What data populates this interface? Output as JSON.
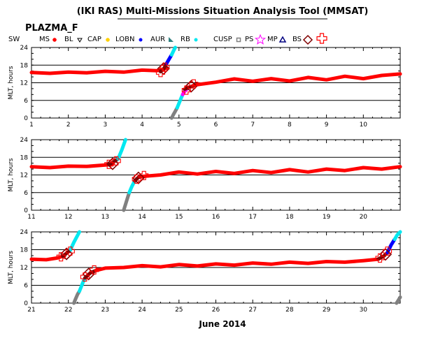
{
  "title": "(IKI RAS) Multi-Missions Situation Analysis Tool (MMSAT)",
  "satellite": "PLAZMA_F",
  "xlabel": "June 2014",
  "ylabel": "MLT, hours",
  "legend": [
    {
      "label": "SW",
      "icon": "none",
      "color": "#000000"
    },
    {
      "label": "MS",
      "icon": "star-icon",
      "color": "#ff0000"
    },
    {
      "label": "BL",
      "icon": "triangle-down-icon",
      "color": "#000000"
    },
    {
      "label": "CAP",
      "icon": "star-icon",
      "color": "#ffd000"
    },
    {
      "label": "LOBN",
      "icon": "dot-icon",
      "color": "#0000ff"
    },
    {
      "label": "AUR",
      "icon": "wedge-icon",
      "color": "#2f7f7f"
    },
    {
      "label": "RB",
      "icon": "dot-icon",
      "color": "#00e8f0"
    },
    {
      "label": "CUSP",
      "icon": "square-icon",
      "color": "#808080"
    },
    {
      "label": "PS",
      "icon": "star-outline-icon",
      "color": "#ff00ff"
    },
    {
      "label": "MP",
      "icon": "triangle-up-icon",
      "color": "#000080"
    },
    {
      "label": "BS",
      "icon": "diamond-icon",
      "color": "#800000"
    },
    {
      "label": "",
      "icon": "cross-outline-icon",
      "color": "#ff0000"
    }
  ],
  "chart_data": [
    {
      "type": "line",
      "panel": "1-11 June 2014",
      "xlim": [
        1,
        11
      ],
      "ylim": [
        0,
        24
      ],
      "xticks": [
        "1",
        "2",
        "3",
        "4",
        "5",
        "6",
        "7",
        "8",
        "9",
        "10"
      ],
      "yticks": [
        "0",
        "6",
        "12",
        "18",
        "24"
      ],
      "grid": true,
      "series": [
        {
          "region": "MS",
          "color": "#ff0000",
          "x": [
            1.0,
            1.5,
            2.0,
            2.5,
            3.0,
            3.5,
            4.0,
            4.4,
            4.55,
            4.65
          ],
          "y": [
            15.5,
            15.2,
            15.6,
            15.4,
            15.9,
            15.6,
            16.3,
            16.1,
            16.4,
            17.0
          ]
        },
        {
          "region": "BS",
          "color": "#800000",
          "x": [
            4.5,
            4.6,
            4.65
          ],
          "y": [
            15.8,
            17.0,
            18.3
          ]
        },
        {
          "region": "RB",
          "color": "#0000ff",
          "x": [
            4.65,
            4.72,
            4.8
          ],
          "y": [
            18.3,
            19.8,
            21.5
          ]
        },
        {
          "region": "RB",
          "color": "#00e8f0",
          "x": [
            4.8,
            4.85,
            4.9
          ],
          "y": [
            21.5,
            22.8,
            24.0
          ]
        },
        {
          "region": "CUSP",
          "color": "#808080",
          "x": [
            4.8,
            4.85,
            4.9,
            4.95
          ],
          "y": [
            0.0,
            1.2,
            2.3,
            3.5
          ]
        },
        {
          "region": "RB",
          "color": "#00e8f0",
          "x": [
            4.95,
            5.0,
            5.05,
            5.1
          ],
          "y": [
            3.5,
            5.0,
            6.5,
            8.0
          ]
        },
        {
          "region": "PS",
          "color": "#ff00ff",
          "x": [
            5.1,
            5.15,
            5.2
          ],
          "y": [
            8.0,
            9.0,
            9.6
          ]
        },
        {
          "region": "BS",
          "color": "#800000",
          "x": [
            5.15,
            5.3,
            5.45
          ],
          "y": [
            9.8,
            10.6,
            11.2
          ]
        },
        {
          "region": "MS",
          "color": "#ff0000",
          "x": [
            5.4,
            6.0,
            6.5,
            7.0,
            7.5,
            8.0,
            8.5,
            9.0,
            9.5,
            10.0,
            10.5,
            11.0
          ],
          "y": [
            11.2,
            12.2,
            13.3,
            12.5,
            13.4,
            12.6,
            13.8,
            13.0,
            14.2,
            13.4,
            14.5,
            15.0
          ]
        }
      ],
      "crossings": [
        {
          "marker": "BS",
          "x": 4.58,
          "y": 16.8
        },
        {
          "marker": "BS",
          "x": 5.33,
          "y": 10.8
        },
        {
          "marker": "MP",
          "x": 4.5,
          "y": 15.5
        },
        {
          "marker": "MP",
          "x": 4.62,
          "y": 17.3
        },
        {
          "marker": "MP",
          "x": 5.2,
          "y": 9.5
        },
        {
          "marker": "MP",
          "x": 5.4,
          "y": 11.6
        }
      ]
    },
    {
      "type": "line",
      "panel": "11-21 June 2014",
      "xlim": [
        11,
        21
      ],
      "ylim": [
        0,
        24
      ],
      "xticks": [
        "11",
        "12",
        "13",
        "14",
        "15",
        "16",
        "17",
        "18",
        "19",
        "20"
      ],
      "yticks": [
        "0",
        "6",
        "12",
        "18",
        "24"
      ],
      "grid": true,
      "series": [
        {
          "region": "MS",
          "color": "#ff0000",
          "x": [
            11.0,
            11.5,
            12.0,
            12.5,
            13.0,
            13.2
          ],
          "y": [
            14.8,
            14.5,
            15.0,
            14.9,
            15.4,
            15.6
          ]
        },
        {
          "region": "BS",
          "color": "#800000",
          "x": [
            13.1,
            13.2,
            13.35
          ],
          "y": [
            15.5,
            16.2,
            17.5
          ]
        },
        {
          "region": "RB",
          "color": "#00e8f0",
          "x": [
            13.35,
            13.45,
            13.55
          ],
          "y": [
            17.5,
            20.5,
            24.0
          ]
        },
        {
          "region": "CUSP",
          "color": "#808080",
          "x": [
            13.5,
            13.55,
            13.6,
            13.65
          ],
          "y": [
            0.0,
            2.0,
            4.0,
            6.0
          ]
        },
        {
          "region": "RB",
          "color": "#00e8f0",
          "x": [
            13.65,
            13.72,
            13.8
          ],
          "y": [
            6.0,
            8.0,
            10.0
          ]
        },
        {
          "region": "BS",
          "color": "#800000",
          "x": [
            13.8,
            13.9,
            14.0
          ],
          "y": [
            10.0,
            11.2,
            11.5
          ]
        },
        {
          "region": "MS",
          "color": "#ff0000",
          "x": [
            14.0,
            14.5,
            15.0,
            15.5,
            16.0,
            16.5,
            17.0,
            17.5,
            18.0,
            18.5,
            19.0,
            19.5,
            20.0,
            20.5,
            21.0
          ],
          "y": [
            11.5,
            12.0,
            13.0,
            12.3,
            13.2,
            12.5,
            13.5,
            12.8,
            13.8,
            13.0,
            14.0,
            13.5,
            14.5,
            14.0,
            14.8
          ]
        }
      ],
      "crossings": [
        {
          "marker": "BS",
          "x": 13.2,
          "y": 15.8
        },
        {
          "marker": "BS",
          "x": 13.9,
          "y": 11.0
        },
        {
          "marker": "MP",
          "x": 13.1,
          "y": 15.6
        },
        {
          "marker": "MP",
          "x": 13.3,
          "y": 16.8
        },
        {
          "marker": "MP",
          "x": 13.85,
          "y": 10.6
        },
        {
          "marker": "MP",
          "x": 14.05,
          "y": 11.8
        }
      ]
    },
    {
      "type": "line",
      "panel": "21-31 June 2014",
      "xlim": [
        21,
        31
      ],
      "ylim": [
        0,
        24
      ],
      "xticks": [
        "21",
        "22",
        "23",
        "24",
        "25",
        "26",
        "27",
        "28",
        "29",
        "30"
      ],
      "yticks": [
        "0",
        "6",
        "12",
        "18",
        "24"
      ],
      "grid": true,
      "series": [
        {
          "region": "MS",
          "color": "#ff0000",
          "x": [
            21.0,
            21.4,
            21.7,
            21.9
          ],
          "y": [
            14.8,
            14.6,
            15.2,
            16.0
          ]
        },
        {
          "region": "BS",
          "color": "#800000",
          "x": [
            21.85,
            21.95,
            22.05
          ],
          "y": [
            15.8,
            16.8,
            17.8
          ]
        },
        {
          "region": "RB",
          "color": "#00e8f0",
          "x": [
            22.05,
            22.15,
            22.3
          ],
          "y": [
            17.8,
            20.5,
            24.0
          ]
        },
        {
          "region": "CUSP",
          "color": "#808080",
          "x": [
            22.15,
            22.2,
            22.25,
            22.3
          ],
          "y": [
            0.0,
            1.5,
            3.0,
            4.0
          ]
        },
        {
          "region": "RB",
          "color": "#00e8f0",
          "x": [
            22.3,
            22.38,
            22.45
          ],
          "y": [
            4.0,
            6.5,
            8.5
          ]
        },
        {
          "region": "BS",
          "color": "#800000",
          "x": [
            22.45,
            22.6,
            22.75
          ],
          "y": [
            8.5,
            10.2,
            11.0
          ]
        },
        {
          "region": "MS",
          "color": "#ff0000",
          "x": [
            22.75,
            23.0,
            23.5,
            24.0,
            24.5,
            25.0,
            25.5,
            26.0,
            26.5,
            27.0,
            27.5,
            28.0,
            28.5,
            29.0,
            29.5,
            30.0,
            30.4
          ],
          "y": [
            11.0,
            11.8,
            12.0,
            12.6,
            12.2,
            13.0,
            12.5,
            13.2,
            12.8,
            13.5,
            13.1,
            13.8,
            13.4,
            14.0,
            13.8,
            14.3,
            14.8
          ]
        },
        {
          "region": "BS",
          "color": "#800000",
          "x": [
            30.4,
            30.55,
            30.65
          ],
          "y": [
            14.8,
            15.8,
            17.0
          ]
        },
        {
          "region": "RB",
          "color": "#0000ff",
          "x": [
            30.65,
            30.75,
            30.85
          ],
          "y": [
            17.0,
            19.5,
            21.5
          ]
        },
        {
          "region": "RB",
          "color": "#00e8f0",
          "x": [
            30.85,
            30.92,
            31.0
          ],
          "y": [
            21.5,
            23.0,
            24.0
          ]
        },
        {
          "region": "CUSP",
          "color": "#808080",
          "x": [
            30.9,
            30.95,
            31.0
          ],
          "y": [
            0.0,
            1.0,
            2.0
          ]
        }
      ],
      "crossings": [
        {
          "marker": "BS",
          "x": 21.95,
          "y": 16.6
        },
        {
          "marker": "BS",
          "x": 22.55,
          "y": 9.8
        },
        {
          "marker": "BS",
          "x": 30.6,
          "y": 16.4
        },
        {
          "marker": "MP",
          "x": 21.8,
          "y": 15.6
        },
        {
          "marker": "MP",
          "x": 22.05,
          "y": 17.5
        },
        {
          "marker": "MP",
          "x": 22.45,
          "y": 8.8
        },
        {
          "marker": "MP",
          "x": 22.7,
          "y": 11.2
        },
        {
          "marker": "MP",
          "x": 30.45,
          "y": 15.2
        },
        {
          "marker": "MP",
          "x": 30.65,
          "y": 17.5
        }
      ]
    }
  ]
}
